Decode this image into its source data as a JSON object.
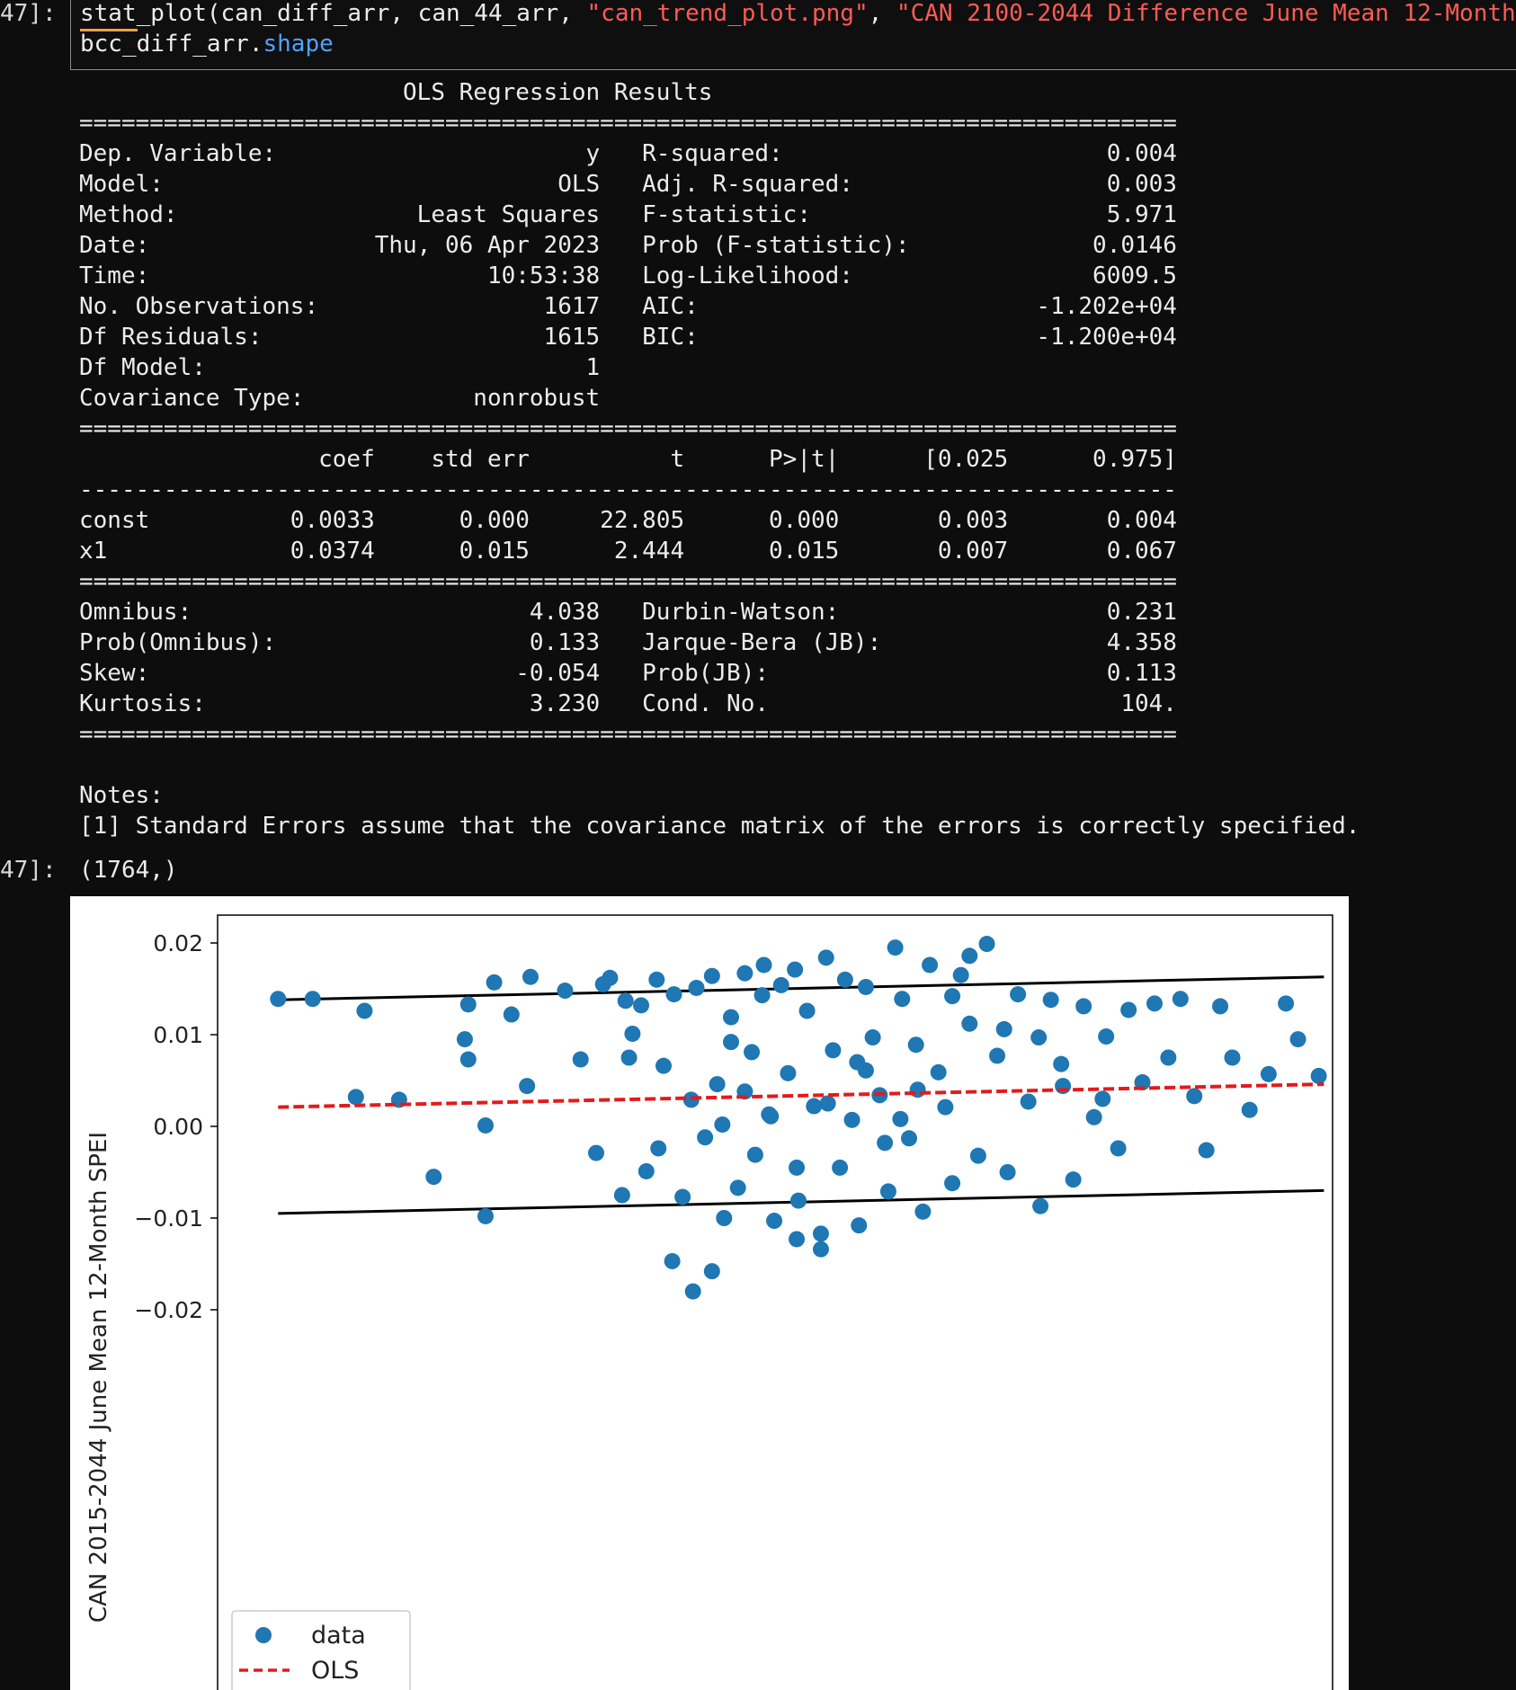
{
  "cell": {
    "prompt_in": "47]:",
    "prompt_out": "47]:",
    "code_line1": {
      "fn": "stat_plot(can_diff_arr, can_44_arr, ",
      "s1": "\"can_trend_plot.png\"",
      "sep": ", ",
      "s2": "\"CAN 2100-2044 Difference June Mean 12-Month"
    },
    "code_line2": {
      "obj": "bcc_diff_arr.",
      "attr": "shape"
    }
  },
  "ols_summary": "                       OLS Regression Results                            \n==============================================================================\nDep. Variable:                      y   R-squared:                       0.004\nModel:                            OLS   Adj. R-squared:                  0.003\nMethod:                 Least Squares   F-statistic:                     5.971\nDate:                Thu, 06 Apr 2023   Prob (F-statistic):             0.0146\nTime:                        10:53:38   Log-Likelihood:                 6009.5\nNo. Observations:                1617   AIC:                        -1.202e+04\nDf Residuals:                    1615   BIC:                        -1.200e+04\nDf Model:                           1                                         \nCovariance Type:            nonrobust                                         \n==============================================================================\n                 coef    std err          t      P>|t|      [0.025      0.975]\n------------------------------------------------------------------------------\nconst          0.0033      0.000     22.805      0.000       0.003       0.004\nx1             0.0374      0.015      2.444      0.015       0.007       0.067\n==============================================================================\nOmnibus:                        4.038   Durbin-Watson:                   0.231\nProb(Omnibus):                  0.133   Jarque-Bera (JB):                4.358\nSkew:                          -0.054   Prob(JB):                        0.113\nKurtosis:                       3.230   Cond. No.                         104.\n==============================================================================\n\nNotes:\n[1] Standard Errors assume that the covariance matrix of the errors is correctly specified.",
  "output_value": "(1764,)",
  "colors": {
    "point": "#1f77b4",
    "ols_line": "#e41a1c",
    "bound_line": "#000000",
    "string": "#ff5b55",
    "attr": "#4fa3ff"
  },
  "chart_data": {
    "type": "scatter",
    "ylabel": "CAN 2015-2044 June Mean 12-Month SPEI",
    "xlabel": "",
    "ylim": [
      -0.021,
      0.022
    ],
    "xlim": [
      -0.0285,
      0.036
    ],
    "yticks": [
      "0.02",
      "0.01",
      "0.00",
      "−0.01",
      "−0.02"
    ],
    "ytick_values": [
      0.02,
      0.01,
      0.0,
      -0.01,
      -0.02
    ],
    "legend": {
      "position": "bottom-left",
      "entries": [
        "data",
        "OLS"
      ]
    },
    "series": [
      {
        "name": "data",
        "kind": "scatter",
        "x": [
          -0.025,
          -0.023,
          -0.02,
          -0.0205,
          -0.018,
          -0.016,
          -0.014,
          -0.0125,
          -0.013,
          -0.0142,
          -0.0115,
          -0.013,
          -0.0104,
          -0.0106,
          -0.014,
          -0.0084,
          -0.0075,
          -0.0066,
          -0.0062,
          -0.0058,
          -0.0051,
          -0.0049,
          -0.0045,
          -0.004,
          -0.0037,
          -0.0031,
          -0.0027,
          -0.0021,
          -0.0016,
          -0.0011,
          -0.0008,
          -0.0003,
          0.0001,
          0.0004,
          0.0008,
          0.0012,
          0.0016,
          0.002,
          0.0024,
          0.0026,
          0.003,
          0.0034,
          0.0037,
          0.0041,
          0.0045,
          0.0049,
          0.0051,
          0.0056,
          0.006,
          0.0064,
          0.0067,
          0.0071,
          0.0075,
          0.0078,
          0.0082,
          0.0086,
          0.009,
          0.0094,
          0.0098,
          0.0103,
          0.0107,
          0.0111,
          0.0115,
          0.0119,
          0.0123,
          0.0127,
          0.0132,
          0.0136,
          0.014,
          0.0145,
          0.015,
          0.0155,
          0.016,
          0.0166,
          0.0172,
          0.0178,
          0.0184,
          0.0191,
          0.0197,
          0.0203,
          0.021,
          0.0216,
          0.0222,
          0.0229,
          0.0236,
          0.0242,
          0.025,
          0.0257,
          0.0265,
          0.0272,
          0.028,
          0.0287,
          0.0295,
          0.0302,
          0.0312,
          0.0323,
          0.0333,
          0.034,
          0.0352,
          0.0007,
          0.002,
          0.0035,
          0.0012,
          0.005,
          0.0068,
          0.0085,
          0.0101,
          0.012,
          0.0001,
          -0.001,
          -0.0022,
          0.009,
          0.015,
          0.017,
          0.0204,
          0.0227,
          0.0031,
          0.005,
          0.0064,
          -0.003,
          -0.0047,
          0.011,
          0.014,
          0.019
        ],
        "y": [
          0.0139,
          0.0139,
          0.0126,
          0.0032,
          0.0029,
          -0.0055,
          0.0133,
          0.0157,
          0.0001,
          0.0095,
          0.0122,
          -0.0098,
          0.0163,
          0.0044,
          0.0073,
          0.0148,
          0.0073,
          -0.0029,
          0.0155,
          0.0162,
          -0.0075,
          0.0137,
          0.0101,
          0.0132,
          -0.0049,
          0.016,
          0.0066,
          0.0144,
          -0.0077,
          0.0029,
          0.0151,
          -0.0012,
          0.0164,
          0.0046,
          -0.01,
          0.0119,
          -0.0067,
          0.0167,
          0.0081,
          -0.0031,
          0.0143,
          0.0013,
          -0.0103,
          0.0154,
          0.0058,
          0.0171,
          -0.0081,
          0.0126,
          0.0022,
          -0.0117,
          0.0184,
          0.0083,
          -0.0045,
          0.016,
          0.0007,
          -0.0108,
          0.0152,
          0.0097,
          0.0034,
          -0.0071,
          0.0195,
          0.0139,
          -0.0013,
          0.0089,
          -0.0093,
          0.0176,
          0.0059,
          0.0021,
          -0.0062,
          0.0165,
          0.0112,
          -0.0032,
          0.0199,
          0.0077,
          -0.005,
          0.0144,
          0.0027,
          -0.0087,
          0.0138,
          0.0068,
          -0.0058,
          0.0131,
          0.001,
          0.0098,
          -0.0024,
          0.0127,
          0.0048,
          0.0134,
          0.0075,
          0.0139,
          0.0033,
          -0.0026,
          0.0131,
          0.0075,
          0.0018,
          0.0057,
          0.0134,
          0.0095,
          0.0055,
          0.0002,
          0.0038,
          0.0011,
          0.0092,
          -0.0045,
          0.0025,
          0.007,
          -0.0018,
          0.004,
          -0.0158,
          -0.018,
          -0.0147,
          0.0061,
          0.0186,
          0.0106,
          0.0044,
          0.003,
          0.0176,
          -0.0123,
          -0.0134,
          -0.0024,
          0.0075,
          0.0008,
          0.0142,
          0.0097
        ]
      },
      {
        "name": "OLS",
        "kind": "line",
        "x": [
          -0.025,
          0.0355
        ],
        "y": [
          0.0021,
          0.0046
        ]
      },
      {
        "kind": "line",
        "x": [
          -0.025,
          0.0355
        ],
        "y": [
          0.0138,
          0.0163
        ]
      },
      {
        "kind": "line",
        "x": [
          -0.025,
          0.0355
        ],
        "y": [
          -0.0095,
          -0.007
        ]
      }
    ]
  }
}
